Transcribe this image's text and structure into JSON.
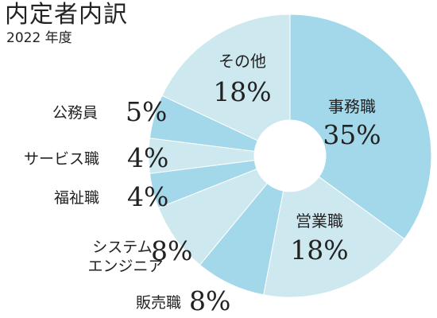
{
  "chart_data": {
    "type": "pie",
    "title": "内定者内訳",
    "subtitle": "2022 年度",
    "donut": true,
    "slices": [
      {
        "name": "事務職",
        "value": 35,
        "label": "35%",
        "color": "#a3d8ea"
      },
      {
        "name": "営業職",
        "value": 18,
        "label": "18%",
        "color": "#cde8ef"
      },
      {
        "name": "販売職",
        "value": 8,
        "label": "8%",
        "color": "#a3d8ea"
      },
      {
        "name": "システムエンジニア",
        "lines": [
          "システム",
          "エンジニア"
        ],
        "value": 8,
        "label": "8%",
        "color": "#cde8ef"
      },
      {
        "name": "福祉職",
        "value": 4,
        "label": "4%",
        "color": "#a3d8ea"
      },
      {
        "name": "サービス職",
        "value": 4,
        "label": "4%",
        "color": "#cde8ef"
      },
      {
        "name": "公務員",
        "value": 5,
        "label": "5%",
        "color": "#a3d8ea"
      },
      {
        "name": "その他",
        "value": 18,
        "label": "18%",
        "color": "#cde8ef"
      }
    ]
  }
}
